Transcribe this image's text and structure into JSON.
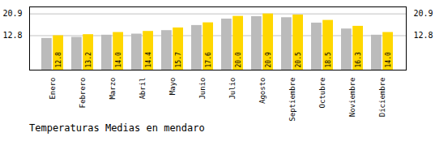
{
  "chart_data": {
    "type": "bar",
    "title": "Temperaturas Medias en mendaro",
    "categories": [
      "Enero",
      "Febrero",
      "Marzo",
      "Abril",
      "Mayo",
      "Junio",
      "Julio",
      "Agosto",
      "Septiembre",
      "Octubre",
      "Noviembre",
      "Diciembre"
    ],
    "series": [
      {
        "color": "#BBBBBB",
        "values": [
          11.8,
          12.2,
          13.0,
          13.4,
          14.7,
          16.6,
          19.0,
          19.9,
          19.5,
          17.5,
          15.3,
          13.0
        ]
      },
      {
        "color": "#FFD700",
        "values": [
          12.8,
          13.2,
          14.0,
          14.4,
          15.7,
          17.6,
          20.0,
          20.9,
          20.5,
          18.5,
          16.3,
          14.0
        ],
        "data_labels": true,
        "value_labels": [
          "12.8",
          "13.2",
          "14.0",
          "14.4",
          "15.7",
          "17.6",
          "20.0",
          "20.9",
          "20.5",
          "18.5",
          "16.3",
          "14.0"
        ]
      }
    ],
    "ylim": [
      0,
      23.5
    ],
    "yticks": [
      12.8,
      20.9
    ],
    "grid": true
  }
}
